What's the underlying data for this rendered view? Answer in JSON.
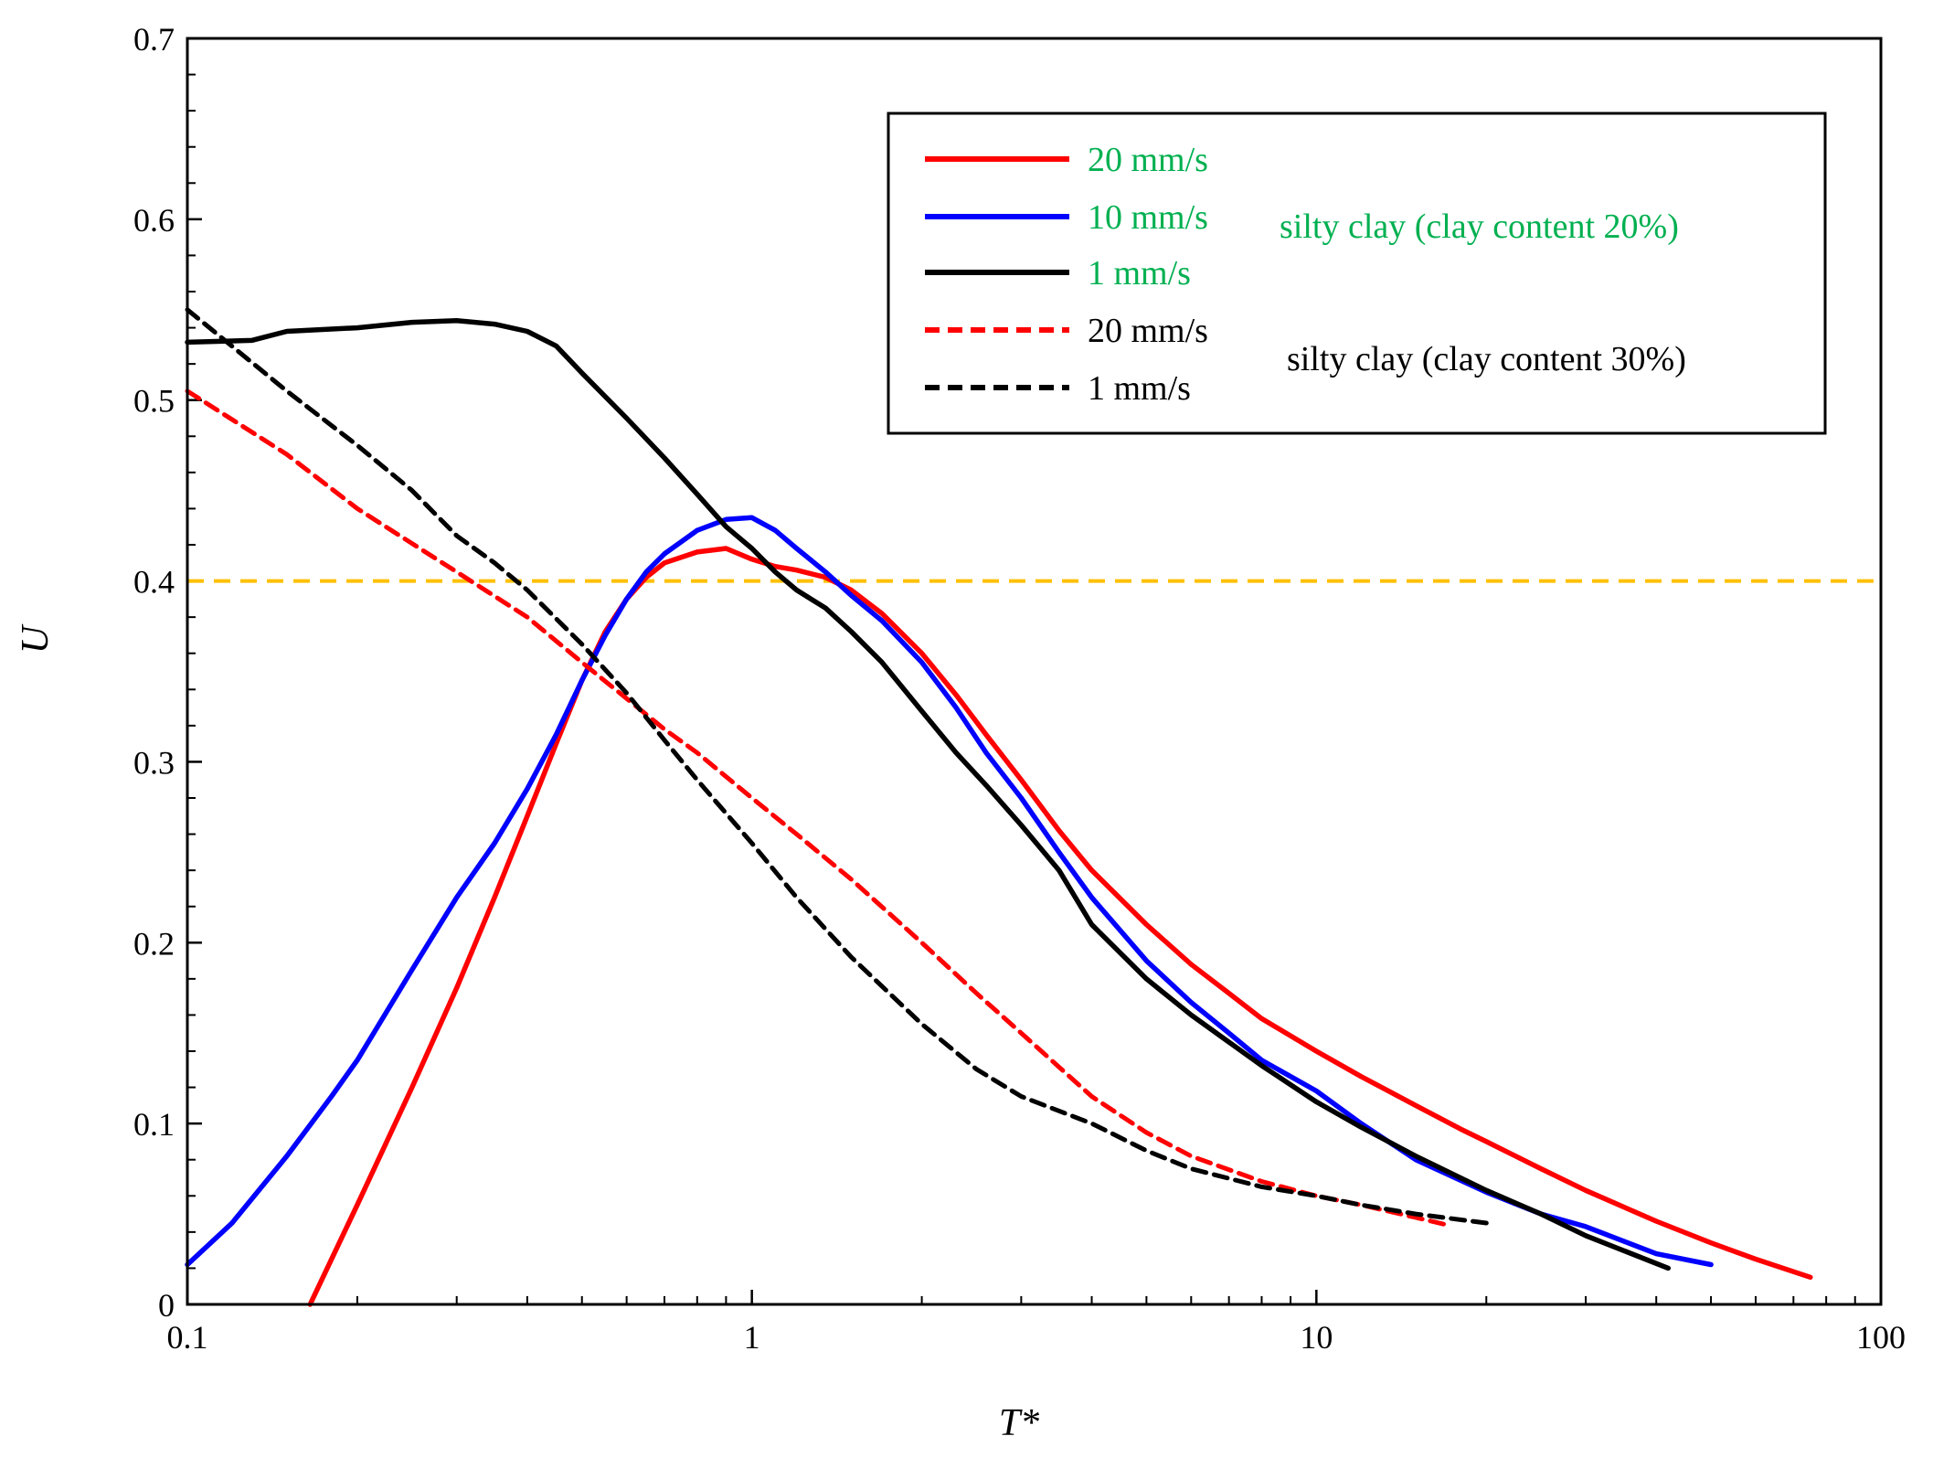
{
  "chart_data": {
    "type": "line",
    "title": "",
    "xlabel": "T*",
    "ylabel": "U",
    "xscale": "log",
    "xlim": [
      0.1,
      100
    ],
    "ylim": [
      0,
      0.7
    ],
    "x_ticks": [
      0.1,
      1,
      10,
      100
    ],
    "x_tick_labels": [
      "0.1",
      "1",
      "10",
      "100"
    ],
    "y_ticks": [
      0,
      0.1,
      0.2,
      0.3,
      0.4,
      0.5,
      0.6,
      0.7
    ],
    "y_tick_labels": [
      "0",
      "0.1",
      "0.2",
      "0.3",
      "0.4",
      "0.5",
      "0.6",
      "0.7"
    ],
    "grid": false,
    "legend_position": "top-right",
    "legend_groups": [
      {
        "label": "silty clay (clay content 20%)",
        "color": "#00B050"
      },
      {
        "label": "silty clay (clay content 30%)",
        "color": "#000000"
      }
    ],
    "reference_lines": [
      {
        "axis": "y",
        "value": 0.4,
        "color": "#FFC000",
        "style": "dashed"
      }
    ],
    "series": [
      {
        "name": "20 mm/s",
        "group": "silty clay (clay content 20%)",
        "color": "#FF0000",
        "style": "solid",
        "label_color": "#00B050",
        "x": [
          0.165,
          0.2,
          0.25,
          0.3,
          0.35,
          0.4,
          0.45,
          0.5,
          0.55,
          0.6,
          0.65,
          0.7,
          0.8,
          0.9,
          1.0,
          1.1,
          1.2,
          1.35,
          1.5,
          1.7,
          2.0,
          2.3,
          2.6,
          3.0,
          3.5,
          4.0,
          5.0,
          6.0,
          7.0,
          8.0,
          10,
          12,
          15,
          18,
          20,
          25,
          30,
          40,
          50,
          60,
          75
        ],
        "y": [
          0.0,
          0.055,
          0.12,
          0.175,
          0.225,
          0.27,
          0.31,
          0.345,
          0.372,
          0.39,
          0.402,
          0.41,
          0.416,
          0.418,
          0.412,
          0.408,
          0.406,
          0.402,
          0.395,
          0.382,
          0.36,
          0.337,
          0.315,
          0.29,
          0.262,
          0.24,
          0.21,
          0.188,
          0.172,
          0.158,
          0.14,
          0.126,
          0.11,
          0.097,
          0.09,
          0.075,
          0.063,
          0.046,
          0.034,
          0.025,
          0.015
        ]
      },
      {
        "name": "10 mm/s",
        "group": "silty clay (clay content 20%)",
        "color": "#0000FF",
        "style": "solid",
        "label_color": "#00B050",
        "x": [
          0.1,
          0.12,
          0.15,
          0.18,
          0.2,
          0.25,
          0.3,
          0.35,
          0.4,
          0.45,
          0.5,
          0.55,
          0.6,
          0.65,
          0.7,
          0.8,
          0.9,
          1.0,
          1.1,
          1.2,
          1.35,
          1.5,
          1.7,
          2.0,
          2.3,
          2.6,
          3.0,
          3.5,
          4.0,
          5.0,
          6.0,
          7.0,
          8.0,
          10,
          12,
          15,
          20,
          25,
          30,
          40,
          50
        ],
        "y": [
          0.022,
          0.045,
          0.082,
          0.115,
          0.135,
          0.185,
          0.225,
          0.255,
          0.285,
          0.315,
          0.345,
          0.37,
          0.39,
          0.405,
          0.415,
          0.428,
          0.434,
          0.435,
          0.428,
          0.418,
          0.405,
          0.392,
          0.378,
          0.355,
          0.33,
          0.305,
          0.28,
          0.25,
          0.225,
          0.19,
          0.167,
          0.15,
          0.135,
          0.118,
          0.1,
          0.08,
          0.062,
          0.05,
          0.043,
          0.028,
          0.022
        ]
      },
      {
        "name": "1 mm/s",
        "group": "silty clay (clay content 20%)",
        "color": "#000000",
        "style": "solid",
        "label_color": "#00B050",
        "x": [
          0.1,
          0.13,
          0.15,
          0.2,
          0.25,
          0.3,
          0.35,
          0.4,
          0.45,
          0.5,
          0.6,
          0.7,
          0.8,
          0.9,
          1.0,
          1.1,
          1.2,
          1.35,
          1.5,
          1.7,
          2.0,
          2.3,
          2.6,
          3.0,
          3.5,
          4.0,
          5.0,
          6.0,
          7.0,
          8.0,
          10,
          12,
          15,
          20,
          25,
          30,
          42
        ],
        "y": [
          0.532,
          0.533,
          0.538,
          0.54,
          0.543,
          0.544,
          0.542,
          0.538,
          0.53,
          0.515,
          0.49,
          0.468,
          0.448,
          0.43,
          0.418,
          0.405,
          0.395,
          0.385,
          0.372,
          0.355,
          0.328,
          0.305,
          0.287,
          0.265,
          0.24,
          0.21,
          0.18,
          0.16,
          0.145,
          0.132,
          0.112,
          0.098,
          0.082,
          0.063,
          0.05,
          0.038,
          0.02
        ]
      },
      {
        "name": "20 mm/s",
        "group": "silty clay (clay content 30%)",
        "color": "#FF0000",
        "style": "dashed",
        "label_color": "#000000",
        "x": [
          0.1,
          0.15,
          0.2,
          0.3,
          0.4,
          0.5,
          0.6,
          0.7,
          0.8,
          1.0,
          1.2,
          1.5,
          2.0,
          2.5,
          3.0,
          4.0,
          5.0,
          6.0,
          8.0,
          10,
          12,
          15,
          17
        ],
        "y": [
          0.505,
          0.47,
          0.44,
          0.405,
          0.38,
          0.355,
          0.335,
          0.318,
          0.305,
          0.28,
          0.26,
          0.235,
          0.2,
          0.172,
          0.15,
          0.115,
          0.095,
          0.082,
          0.068,
          0.06,
          0.055,
          0.048,
          0.044
        ]
      },
      {
        "name": "1 mm/s",
        "group": "silty clay (clay content 30%)",
        "color": "#000000",
        "style": "dashed",
        "label_color": "#000000",
        "x": [
          0.1,
          0.15,
          0.2,
          0.25,
          0.3,
          0.35,
          0.4,
          0.5,
          0.6,
          0.7,
          0.8,
          1.0,
          1.2,
          1.5,
          2.0,
          2.5,
          3.0,
          4.0,
          5.0,
          6.0,
          8.0,
          10,
          12,
          15,
          20
        ],
        "y": [
          0.55,
          0.505,
          0.475,
          0.45,
          0.425,
          0.41,
          0.395,
          0.365,
          0.338,
          0.312,
          0.29,
          0.255,
          0.225,
          0.192,
          0.155,
          0.13,
          0.115,
          0.1,
          0.085,
          0.075,
          0.065,
          0.06,
          0.055,
          0.05,
          0.045
        ]
      }
    ]
  }
}
